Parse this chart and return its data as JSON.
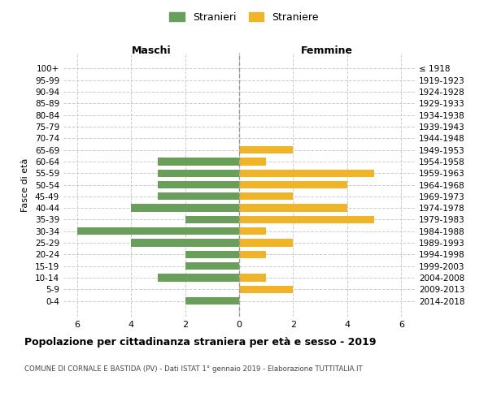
{
  "age_groups": [
    "100+",
    "95-99",
    "90-94",
    "85-89",
    "80-84",
    "75-79",
    "70-74",
    "65-69",
    "60-64",
    "55-59",
    "50-54",
    "45-49",
    "40-44",
    "35-39",
    "30-34",
    "25-29",
    "20-24",
    "15-19",
    "10-14",
    "5-9",
    "0-4"
  ],
  "birth_years": [
    "≤ 1918",
    "1919-1923",
    "1924-1928",
    "1929-1933",
    "1934-1938",
    "1939-1943",
    "1944-1948",
    "1949-1953",
    "1954-1958",
    "1959-1963",
    "1964-1968",
    "1969-1973",
    "1974-1978",
    "1979-1983",
    "1984-1988",
    "1989-1993",
    "1994-1998",
    "1999-2003",
    "2004-2008",
    "2009-2013",
    "2014-2018"
  ],
  "maschi": [
    0,
    0,
    0,
    0,
    0,
    0,
    0,
    0,
    3,
    3,
    3,
    3,
    4,
    2,
    6,
    4,
    2,
    2,
    3,
    0,
    2
  ],
  "femmine": [
    0,
    0,
    0,
    0,
    0,
    0,
    0,
    2,
    1,
    5,
    4,
    2,
    4,
    5,
    1,
    2,
    1,
    0,
    1,
    2,
    0
  ],
  "color_maschi": "#6a9e5b",
  "color_femmine": "#f0b429",
  "title": "Popolazione per cittadinanza straniera per età e sesso - 2019",
  "subtitle": "COMUNE DI CORNALE E BASTIDA (PV) - Dati ISTAT 1° gennaio 2019 - Elaborazione TUTTITALIA.IT",
  "ylabel_left": "Fasce di età",
  "xlabel_maschi": "Maschi",
  "xlabel_femmine": "Femmine",
  "legend_maschi": "Stranieri",
  "legend_femmine": "Straniere",
  "xlim": 6.5,
  "background_color": "#ffffff",
  "grid_color": "#cccccc"
}
